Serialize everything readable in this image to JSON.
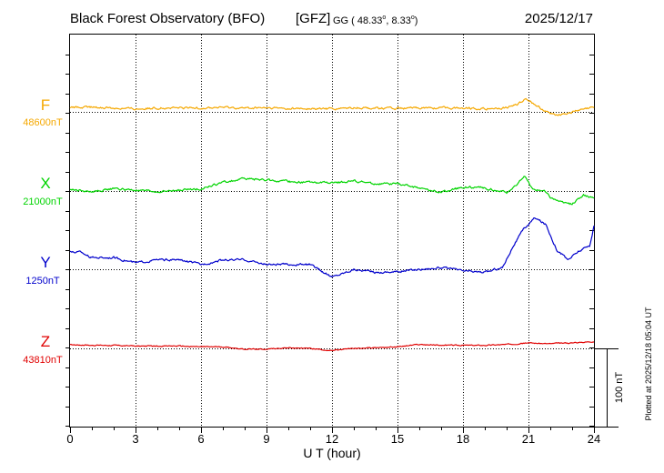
{
  "header": {
    "station": "Black Forest Observatory (BFO)",
    "agency": "[GFZ]",
    "coord_prefix": "GG ( 48.33",
    "coord_sep": ",   8.33",
    "coord_suffix": ")",
    "degree_symbol": "o",
    "date": "2025/12/17"
  },
  "plotted_note": "Plotted at 2025/12/18 05:04 UT",
  "scale_bar_label": "100 nT",
  "colors": {
    "F": "#f5a800",
    "X": "#00d400",
    "Y": "#0000cc",
    "Z": "#e00000",
    "grid": "#000000",
    "axis": "#000000"
  },
  "chart_data": {
    "type": "line",
    "title": "Black Forest Observatory (BFO)",
    "xlabel": "U T (hour)",
    "ylabel": "",
    "xlim": [
      0,
      24
    ],
    "x_ticks": [
      0,
      3,
      6,
      9,
      12,
      15,
      18,
      21,
      24
    ],
    "x_tick_labels": [
      "0",
      "3",
      "6",
      "9",
      "12",
      "15",
      "18",
      "21",
      "24"
    ],
    "grid": true,
    "scale_bar_nT": 100,
    "series": [
      {
        "name": "F",
        "baseline_label": "48600nT",
        "baseline_nT": 48600,
        "x": [
          0,
          1,
          2,
          3,
          4,
          5,
          6,
          7,
          8,
          9,
          10,
          11,
          12,
          13,
          14,
          15,
          16,
          17,
          18,
          19,
          20,
          20.5,
          20.9,
          21.3,
          21.6,
          22,
          22.5,
          23,
          23.5,
          24
        ],
        "values": [
          48605,
          48606,
          48605,
          48604,
          48605,
          48605,
          48605,
          48606,
          48605,
          48605,
          48604,
          48604,
          48604,
          48605,
          48605,
          48604,
          48605,
          48605,
          48605,
          48604,
          48605,
          48610,
          48617,
          48609,
          48604,
          48597,
          48597,
          48600,
          48603,
          48606
        ]
      },
      {
        "name": "X",
        "baseline_label": "21000nT",
        "baseline_nT": 21000,
        "x": [
          0,
          1,
          2,
          3,
          4,
          5,
          6,
          7,
          8,
          9,
          10,
          11,
          12,
          13,
          14,
          15,
          16,
          17,
          18,
          19,
          20,
          20.5,
          20.8,
          21.2,
          21.7,
          22,
          22.5,
          23,
          23.5,
          24
        ],
        "values": [
          21002,
          20999,
          21003,
          21001,
          20999,
          21001,
          21003,
          21011,
          21016,
          21014,
          21012,
          21011,
          21010,
          21013,
          21009,
          21009,
          21004,
          20998,
          21005,
          21004,
          20998,
          21008,
          21020,
          21002,
          21001,
          20992,
          20986,
          20983,
          20995,
          20990
        ]
      },
      {
        "name": "Y",
        "baseline_label": "1250nT",
        "baseline_nT": 1250,
        "x": [
          0,
          0.5,
          1,
          2,
          3,
          4,
          5,
          6,
          7,
          8,
          9,
          10,
          11,
          11.5,
          12,
          12.5,
          13,
          14,
          15,
          16,
          17,
          18,
          19,
          19.8,
          20.3,
          20.8,
          21.3,
          21.8,
          22.3,
          22.8,
          23.3,
          23.8,
          24
        ],
        "values": [
          1272,
          1272,
          1265,
          1265,
          1258,
          1262,
          1262,
          1256,
          1262,
          1262,
          1256,
          1256,
          1256,
          1248,
          1240,
          1245,
          1250,
          1246,
          1247,
          1250,
          1252,
          1248,
          1246,
          1252,
          1280,
          1302,
          1316,
          1307,
          1275,
          1262,
          1273,
          1280,
          1305
        ]
      },
      {
        "name": "Z",
        "baseline_label": "43810nT",
        "baseline_nT": 43810,
        "x": [
          0,
          1,
          2,
          3,
          4,
          5,
          6,
          7,
          8,
          9,
          10,
          11,
          12,
          13,
          14,
          15,
          16,
          17,
          18,
          19,
          20,
          21,
          22,
          23,
          24
        ],
        "values": [
          43815,
          43814,
          43814,
          43813,
          43813,
          43813,
          43812,
          43812,
          43809,
          43809,
          43811,
          43810,
          43807,
          43810,
          43811,
          43812,
          43815,
          43814,
          43814,
          43814,
          43815,
          43817,
          43816,
          43817,
          43819
        ]
      }
    ]
  }
}
